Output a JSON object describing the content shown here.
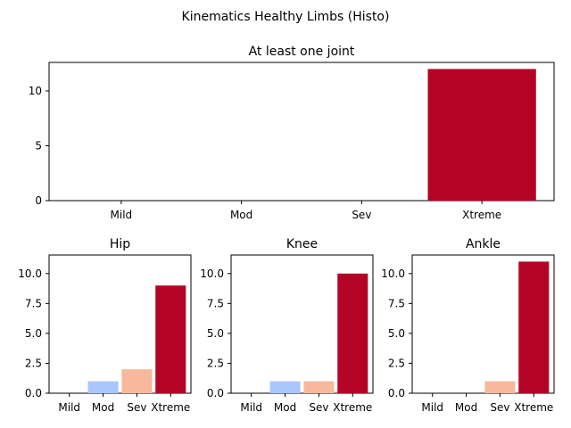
{
  "suptitle": "Kinematics Healthy Limbs (Histo)",
  "colors": {
    "Mild": "#3b4cc0",
    "Mod": "#aac7fd",
    "Sev": "#f7b89c",
    "Xtreme": "#b40426"
  },
  "chart_data": [
    {
      "type": "bar",
      "title": "At least one joint",
      "categories": [
        "Mild",
        "Mod",
        "Sev",
        "Xtreme"
      ],
      "values": [
        0,
        0,
        0,
        12
      ],
      "ylim": [
        0,
        12.6
      ],
      "yticks": [
        "0",
        "5",
        "10"
      ],
      "ytick_values": [
        0,
        5,
        10
      ]
    },
    {
      "type": "bar",
      "title": "Hip",
      "categories": [
        "Mild",
        "Mod",
        "Sev",
        "Xtreme"
      ],
      "values": [
        0,
        1,
        2,
        9
      ],
      "ylim": [
        0,
        11.55
      ],
      "yticks": [
        "0.0",
        "2.5",
        "5.0",
        "7.5",
        "10.0"
      ],
      "ytick_values": [
        0,
        2.5,
        5,
        7.5,
        10
      ]
    },
    {
      "type": "bar",
      "title": "Knee",
      "categories": [
        "Mild",
        "Mod",
        "Sev",
        "Xtreme"
      ],
      "values": [
        0,
        1,
        1,
        10
      ],
      "ylim": [
        0,
        11.55
      ],
      "yticks": [
        "0.0",
        "2.5",
        "5.0",
        "7.5",
        "10.0"
      ],
      "ytick_values": [
        0,
        2.5,
        5,
        7.5,
        10
      ]
    },
    {
      "type": "bar",
      "title": "Ankle",
      "categories": [
        "Mild",
        "Mod",
        "Sev",
        "Xtreme"
      ],
      "values": [
        0,
        0,
        1,
        11
      ],
      "ylim": [
        0,
        11.55
      ],
      "yticks": [
        "0.0",
        "2.5",
        "5.0",
        "7.5",
        "10.0"
      ],
      "ytick_values": [
        0,
        2.5,
        5,
        7.5,
        10
      ]
    }
  ]
}
